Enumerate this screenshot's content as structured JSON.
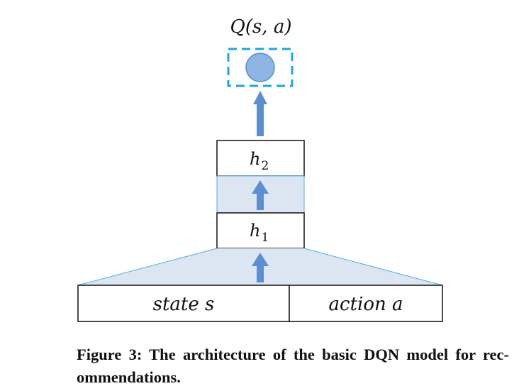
{
  "diagram": {
    "output_label": "Q(s, a)",
    "h2_label": "h",
    "h2_sub": "2",
    "h1_label": "h",
    "h1_sub": "1",
    "state_label": "state s",
    "action_label": "action a",
    "colors": {
      "dash": "#1aa7e0",
      "node": "#8db4e2",
      "arrow": "#5b8fd0",
      "band": "#dce6f2",
      "line": "#4faee0"
    }
  },
  "caption": "Figure 3: The architecture of the basic DQN model for rec­ommendations."
}
